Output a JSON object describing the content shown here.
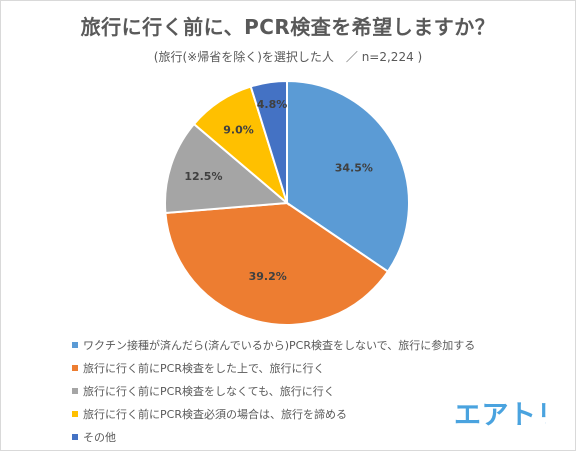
{
  "chart_data": {
    "type": "pie",
    "title": "旅行に行く前に、PCR検査を希望しますか？",
    "subtitle": "(旅行(※帰省を除く)を選択した人　／ n=2,224 )",
    "slices": [
      {
        "name": "ワクチン接種が済んだら(済んでいるから)PCR検査をしないで、旅行に参加する",
        "value": 34.5,
        "label": "34.5%",
        "color": "#5b9bd5"
      },
      {
        "name": "旅行に行く前にPCR検査をした上で、旅行に行く",
        "value": 39.2,
        "label": "39.2%",
        "color": "#ed7d31"
      },
      {
        "name": "旅行に行く前にPCR検査をしなくても、旅行に行く",
        "value": 12.5,
        "label": "12.5%",
        "color": "#a5a5a5"
      },
      {
        "name": "旅行に行く前にPCR検査必須の場合は、旅行を諦める",
        "value": 9.0,
        "label": "9.0%",
        "color": "#ffc000"
      },
      {
        "name": "その他",
        "value": 4.8,
        "label": "4.8%",
        "color": "#4472c4"
      }
    ],
    "start": "12 o'clock, clockwise",
    "legend_position": "bottom-left"
  },
  "branding": {
    "logo_text": "エアトリ",
    "logo_color": "#4aa3df"
  }
}
